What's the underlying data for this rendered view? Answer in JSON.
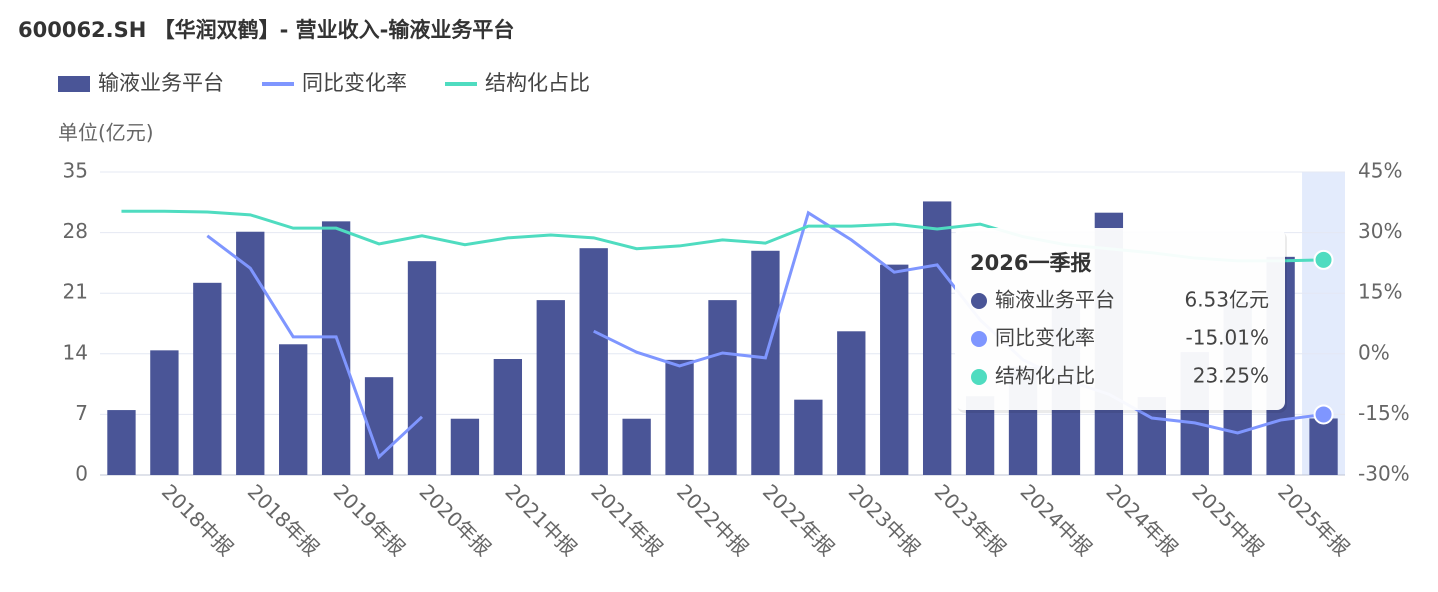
{
  "chart_data": {
    "type": "bar_line",
    "title": "600062.SH 【华润双鹤】- 营业收入-输液业务平台",
    "y_unit_label": "单位(亿元)",
    "categories": [
      null,
      "2018中报",
      null,
      "2018年报",
      null,
      "2019年报",
      null,
      "2020年报",
      null,
      "2021中报",
      null,
      "2021年报",
      null,
      "2022中报",
      null,
      "2022年报",
      null,
      "2023中报",
      null,
      "2023年报",
      null,
      "2024中报",
      null,
      "2024年报",
      null,
      "2025中报",
      null,
      "2025年报",
      null
    ],
    "series": [
      {
        "name": "输液业务平台",
        "type": "bar",
        "color": "#4a5597",
        "values": [
          7.5,
          14.4,
          22.2,
          28.1,
          15.1,
          29.3,
          11.3,
          24.7,
          6.5,
          13.4,
          20.2,
          26.2,
          6.5,
          13.3,
          20.2,
          25.9,
          8.7,
          16.6,
          24.3,
          31.6,
          9.1,
          12.5,
          19.8,
          30.3,
          9.0,
          14.2,
          20.0,
          25.2,
          6.53
        ]
      },
      {
        "name": "同比变化率",
        "type": "line",
        "axis": "y2",
        "color": "#7f96ff",
        "values": [
          null,
          null,
          29.2,
          21.2,
          4.2,
          4.2,
          -25.5,
          -15.6,
          null,
          null,
          null,
          5.6,
          0.4,
          -3.0,
          0.2,
          -1.0,
          34.9,
          28.2,
          20.2,
          22.0,
          8.4,
          -1.5,
          -6.5,
          -10.0,
          -15.9,
          -17.1,
          -19.6,
          -16.4,
          -15.01
        ]
      },
      {
        "name": "结构化占比",
        "type": "line",
        "axis": "y2",
        "color": "#4fdcc0",
        "values": [
          35.3,
          35.3,
          35.1,
          34.4,
          31.1,
          31.1,
          27.2,
          29.2,
          27.0,
          28.7,
          29.4,
          28.7,
          26.0,
          26.7,
          28.2,
          27.4,
          31.6,
          31.6,
          32.1,
          30.9,
          32.1,
          29.0,
          27.0,
          26.0,
          25.0,
          23.7,
          23.0,
          23.0,
          23.25
        ]
      }
    ],
    "ylim": [
      0,
      35
    ],
    "yticks": [
      0,
      7,
      14,
      21,
      28,
      35
    ],
    "y2lim": [
      -30,
      45
    ],
    "y2ticks": [
      {
        "value": -30,
        "label": "-30%"
      },
      {
        "value": -15,
        "label": "-15%"
      },
      {
        "value": 0,
        "label": "0%"
      },
      {
        "value": 15,
        "label": "15%"
      },
      {
        "value": 30,
        "label": "30%"
      },
      {
        "value": 45,
        "label": "45%"
      }
    ],
    "grid": true,
    "highlight_index": 28,
    "tooltip": {
      "title": "2026一季报",
      "items": [
        {
          "value_label": "6.53亿元"
        },
        {
          "value_label": "-15.01%"
        },
        {
          "value_label": "23.25%"
        }
      ]
    }
  }
}
